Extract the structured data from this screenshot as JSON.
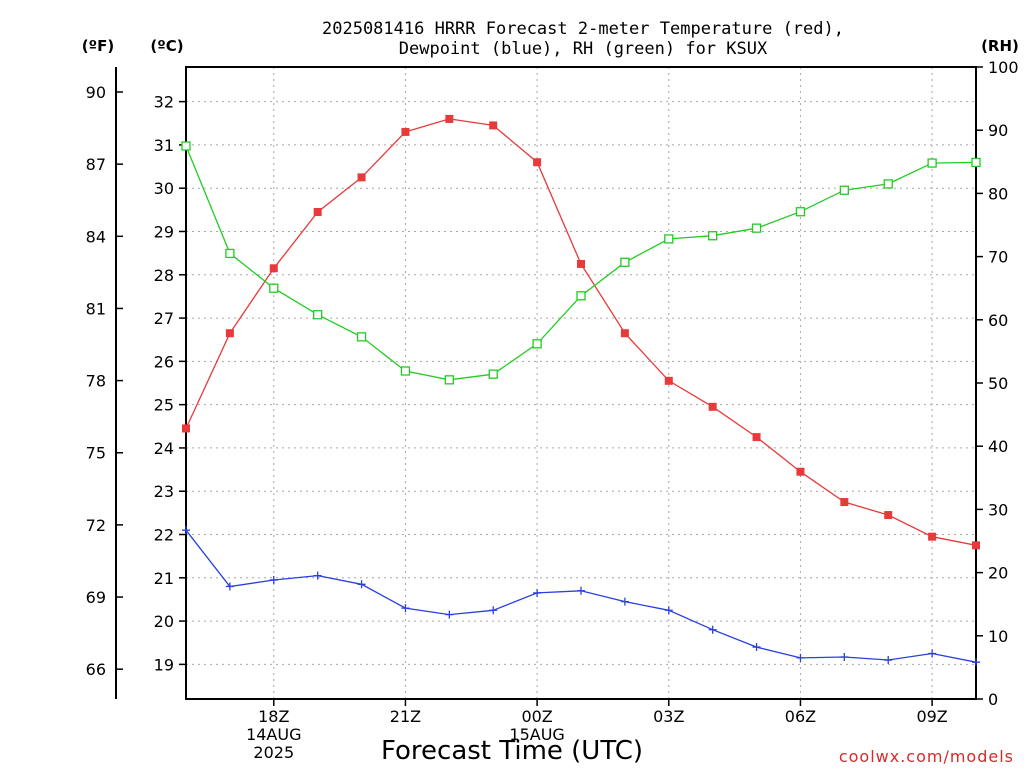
{
  "chart_data": {
    "type": "line",
    "title_lines": [
      "2025081416 HRRR Forecast 2-meter Temperature (red),",
      "Dewpoint (blue), RH (green) for KSUX"
    ],
    "xlabel": "Forecast Time (UTC)",
    "watermark": "coolwx.com/models",
    "unit_labels": {
      "fahrenheit": "(ºF)",
      "celsius": "(ºC)",
      "rh": "(RH)"
    },
    "x_ticks": [
      {
        "hour": 18,
        "lines": [
          "18Z",
          "14AUG",
          "2025"
        ]
      },
      {
        "hour": 21,
        "lines": [
          "21Z"
        ]
      },
      {
        "hour": 24,
        "lines": [
          "00Z",
          "15AUG"
        ]
      },
      {
        "hour": 27,
        "lines": [
          "03Z"
        ]
      },
      {
        "hour": 30,
        "lines": [
          "06Z"
        ]
      },
      {
        "hour": 33,
        "lines": [
          "09Z"
        ]
      }
    ],
    "x_hours_utc_from_14aug00z": [
      16,
      17,
      18,
      19,
      20,
      21,
      22,
      23,
      24,
      25,
      26,
      27,
      28,
      29,
      30,
      31,
      32,
      33,
      34
    ],
    "xlim_hours": [
      16,
      34
    ],
    "celsius_axis": {
      "ylim": [
        18.2,
        32.8
      ],
      "ticks": [
        19,
        20,
        21,
        22,
        23,
        24,
        25,
        26,
        27,
        28,
        29,
        30,
        31,
        32
      ]
    },
    "fahrenheit_axis": {
      "ticks": [
        66,
        69,
        72,
        75,
        78,
        81,
        84,
        87,
        90
      ]
    },
    "rh_axis": {
      "ylim": [
        0,
        100
      ],
      "ticks": [
        0,
        10,
        20,
        30,
        40,
        50,
        60,
        70,
        80,
        90,
        100
      ]
    },
    "series": [
      {
        "name": "Temperature",
        "axis": "celsius",
        "color": "#e83a3a",
        "marker": "filled-square",
        "values": [
          24.45,
          26.65,
          28.15,
          29.45,
          30.25,
          31.3,
          31.6,
          31.45,
          30.6,
          28.25,
          26.65,
          25.55,
          24.95,
          24.25,
          23.45,
          22.75,
          22.45,
          21.95,
          21.75
        ]
      },
      {
        "name": "Dewpoint",
        "axis": "celsius",
        "color": "#2a3fe0",
        "marker": "plus",
        "values": [
          22.1,
          20.8,
          20.95,
          21.05,
          20.85,
          20.3,
          20.15,
          20.25,
          20.65,
          20.7,
          20.45,
          20.25,
          19.8,
          19.4,
          19.15,
          19.17,
          19.1,
          19.25,
          19.05
        ]
      },
      {
        "name": "RH",
        "axis": "rh",
        "color": "#22cc22",
        "marker": "open-square",
        "values": [
          87.5,
          70.5,
          65,
          60.8,
          57.3,
          51.9,
          50.5,
          51.4,
          56.2,
          63.8,
          69.1,
          72.8,
          73.3,
          74.5,
          77.1,
          80.5,
          81.5,
          84.8,
          84.9
        ]
      }
    ]
  }
}
